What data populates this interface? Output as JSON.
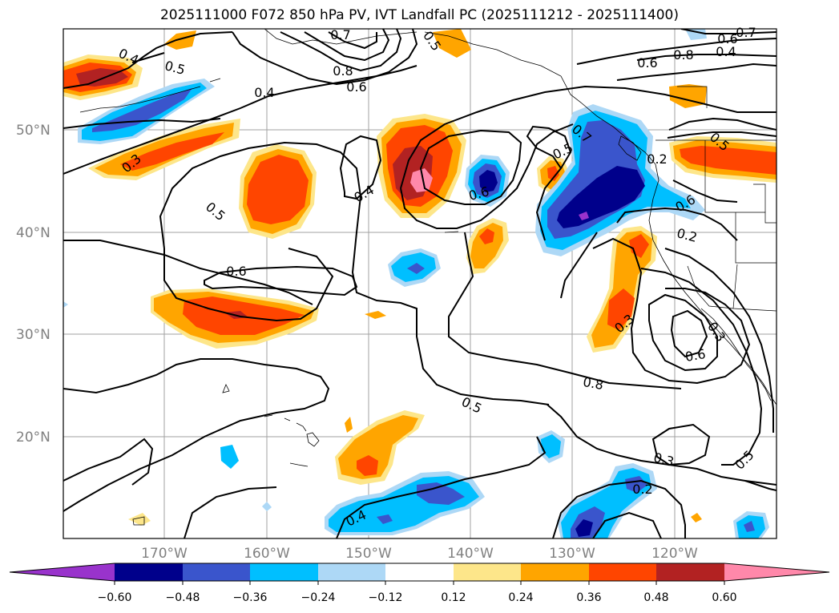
{
  "title": "2025111000 F072 850 hPa PV, IVT Landfall PC (2025111212 - 2025111400)",
  "lat_labels": [
    "50°N",
    "40°N",
    "30°N",
    "20°N"
  ],
  "lon_labels": [
    "170°W",
    "160°W",
    "150°W",
    "140°W",
    "130°W",
    "120°W"
  ],
  "contour_labels": [
    "0.4",
    "0.5",
    "0.4",
    "0.3",
    "0.5",
    "0.6",
    "0.6",
    "0.7",
    "0.8",
    "0.5",
    "0.4",
    "0.6",
    "0.5",
    "0.7",
    "0.6",
    "0.8",
    "0.4",
    "0.5",
    "0.6",
    "0.7",
    "0.6",
    "0.2",
    "0.3",
    "0.6",
    "0.8",
    "0.5",
    "0.3",
    "0.5",
    "0.4",
    "0.2",
    "0.2",
    "0.3"
  ],
  "colorbar": {
    "ticks": [
      "−0.60",
      "−0.48",
      "−0.36",
      "−0.24",
      "−0.12",
      "0.12",
      "0.24",
      "0.36",
      "0.48",
      "0.60"
    ],
    "colors": {
      "lt_-0.60": "#9933cc",
      "-0.60_-0.48": "#00008b",
      "-0.48_-0.36": "#3a55cc",
      "-0.36_-0.24": "#00bfff",
      "-0.24_-0.12": "#add8f6",
      "-0.12_0.12": "#ffffff",
      "0.12_0.24": "#fde68a",
      "0.24_0.36": "#ffa500",
      "0.36_0.48": "#ff4500",
      "0.48_0.60": "#b22222",
      "gt_0.60": "#ff88aa"
    }
  }
}
